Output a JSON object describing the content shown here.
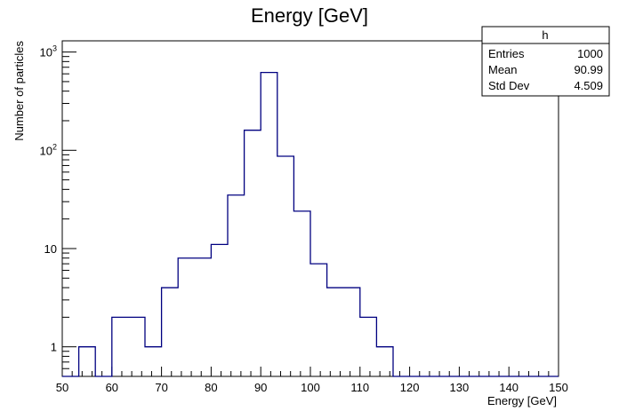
{
  "chart_data": {
    "type": "histogram",
    "title": "Energy [GeV]",
    "xlabel": "Energy [GeV]",
    "ylabel": "Number of particles",
    "xlim": [
      50,
      150
    ],
    "ylim": [
      0.5,
      1300
    ],
    "yscale": "log",
    "bin_width": 3.333,
    "bins_start": 50,
    "counts": [
      0,
      1,
      0,
      2,
      2,
      1,
      4,
      8,
      8,
      11,
      35,
      160,
      620,
      87,
      24,
      7,
      4,
      4,
      2,
      1,
      0,
      0,
      0,
      0,
      0,
      0,
      0,
      0,
      0,
      0
    ],
    "x_ticks": [
      "50",
      "60",
      "70",
      "80",
      "90",
      "100",
      "110",
      "120",
      "130",
      "140",
      "150"
    ],
    "y_ticks": [
      {
        "value": 1,
        "base": "1",
        "exp": ""
      },
      {
        "value": 10,
        "base": "10",
        "exp": ""
      },
      {
        "value": 100,
        "base": "10",
        "exp": "2"
      },
      {
        "value": 1000,
        "base": "10",
        "exp": "3"
      }
    ],
    "line_color": "#000080",
    "stats_box": {
      "name": "h",
      "entries_label": "Entries",
      "entries_value": "1000",
      "mean_label": "Mean",
      "mean_value": "90.99",
      "stddev_label": "Std Dev",
      "stddev_value": "4.509"
    },
    "grid": false,
    "legend_position": "top-right"
  }
}
